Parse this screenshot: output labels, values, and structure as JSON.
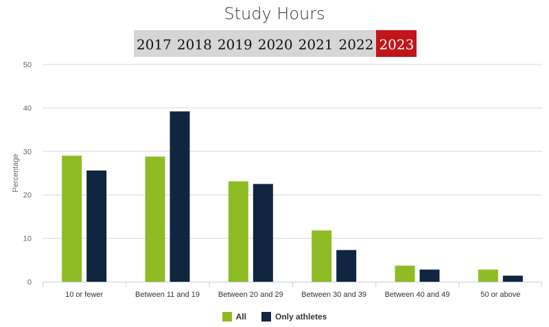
{
  "title": "Study Hours",
  "years": [
    "2017",
    "2018",
    "2019",
    "2020",
    "2021",
    "2022",
    "2023"
  ],
  "selected_year": "2023",
  "colors": {
    "all": "#8fbc25",
    "athletes": "#0f2540",
    "active_year": "#c2151c",
    "grid": "#d8d8d8",
    "axis": "#c0d0e0"
  },
  "chart_data": {
    "type": "bar",
    "categories": [
      "10 or fewer",
      "Between 11 and 19",
      "Between 20 and 29",
      "Between 30 and 39",
      "Between 40 and 49",
      "50 or above"
    ],
    "series": [
      {
        "name": "All",
        "values": [
          29,
          28.8,
          23.1,
          11.8,
          3.7,
          2.8
        ]
      },
      {
        "name": "Only athletes",
        "values": [
          25.6,
          39.2,
          22.5,
          7.3,
          2.8,
          1.4
        ]
      }
    ],
    "ylabel": "Percentage",
    "xlabel": "",
    "ylim": [
      0,
      50
    ],
    "yticks": [
      0,
      10,
      20,
      30,
      40,
      50
    ],
    "grid": true,
    "legend": "bottom-center"
  }
}
